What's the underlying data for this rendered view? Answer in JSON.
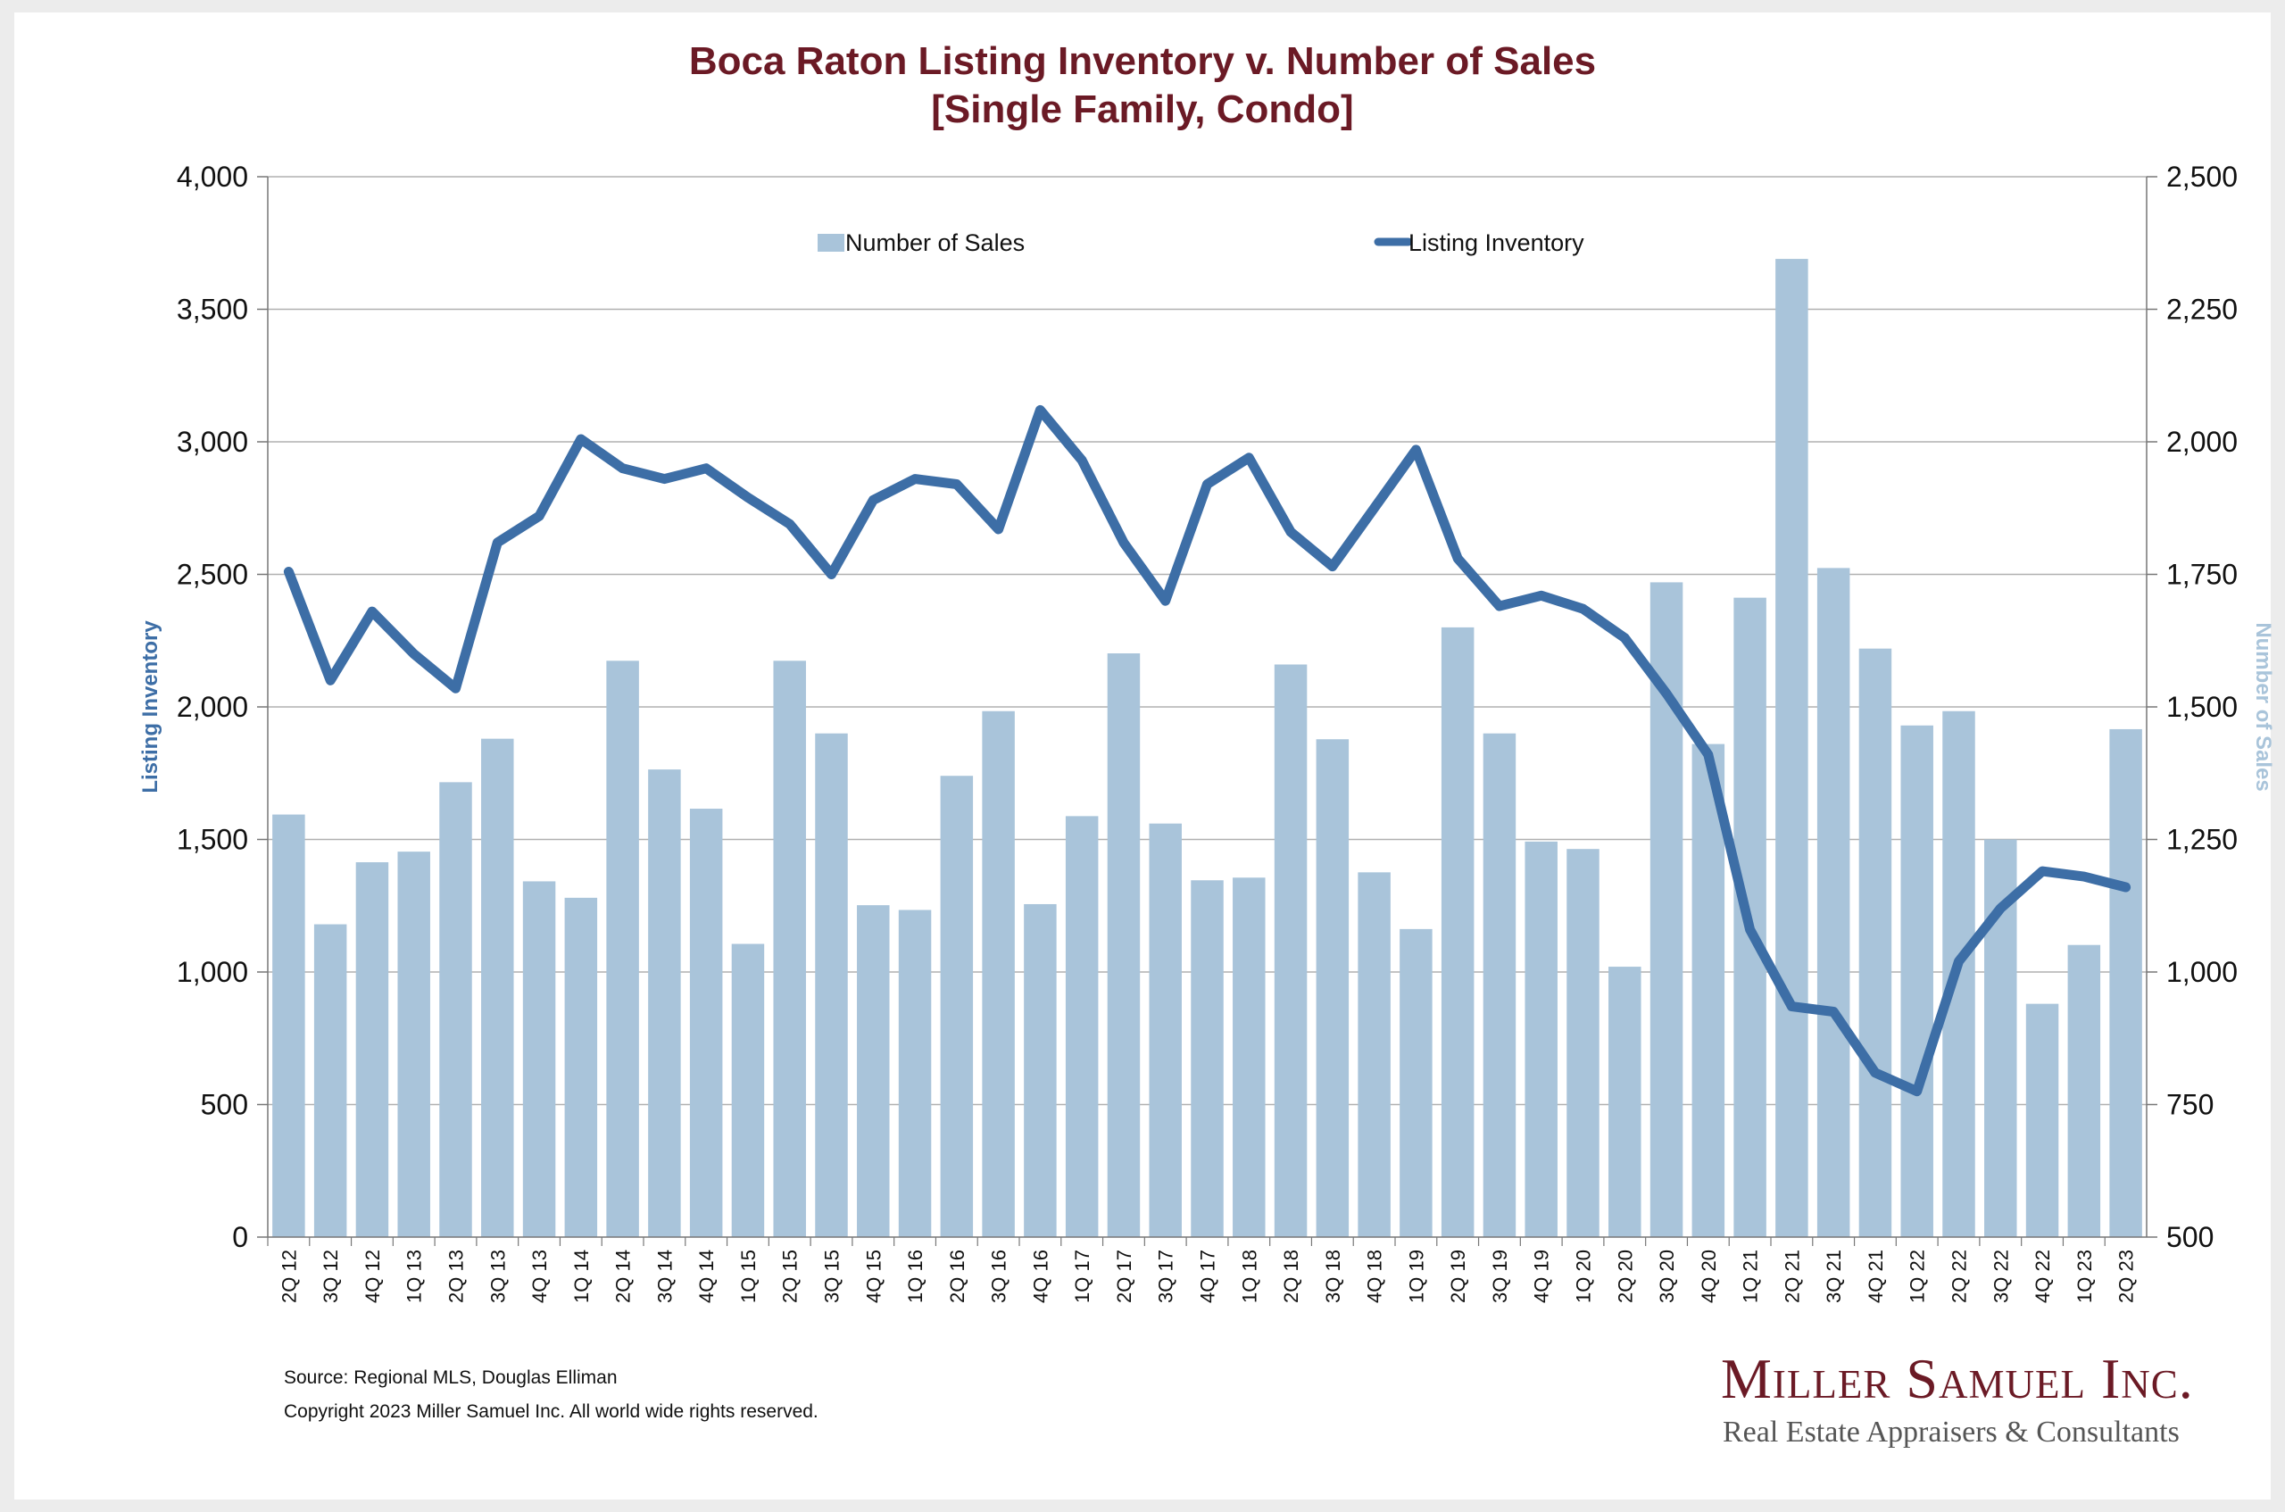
{
  "title": {
    "line1": "Boca Raton Listing Inventory v. Number of Sales",
    "line2": "[Single Family, Condo]"
  },
  "footer": {
    "source": "Source: Regional MLS, Douglas Elliman",
    "copyright": "Copyright 2023 Miller Samuel Inc.  All world wide rights reserved."
  },
  "logo": {
    "name": "Miller Samuel Inc.",
    "tagline": "Real Estate Appraisers & Consultants"
  },
  "colors": {
    "bars": "#a9c4da",
    "line": "#3d6ea6",
    "title": "#6b1a25",
    "grid": "#b0b0b0"
  },
  "chart_data": {
    "type": "bar",
    "categories": [
      "2Q 12",
      "3Q 12",
      "4Q 12",
      "1Q 13",
      "2Q 13",
      "3Q 13",
      "4Q 13",
      "1Q 14",
      "2Q 14",
      "3Q 14",
      "4Q 14",
      "1Q 15",
      "2Q 15",
      "3Q 15",
      "4Q 15",
      "1Q 16",
      "2Q 16",
      "3Q 16",
      "4Q 16",
      "1Q 17",
      "2Q 17",
      "3Q 17",
      "4Q 17",
      "1Q 18",
      "2Q 18",
      "3Q 18",
      "4Q 18",
      "1Q 19",
      "2Q 19",
      "3Q 19",
      "4Q 19",
      "1Q 20",
      "2Q 20",
      "3Q 20",
      "4Q 20",
      "1Q 21",
      "2Q 21",
      "3Q 21",
      "4Q 21",
      "1Q 22",
      "2Q 22",
      "3Q 22",
      "4Q 22",
      "1Q 23",
      "2Q 23"
    ],
    "series": [
      {
        "name": "Number of Sales",
        "type": "bar",
        "axis": "right",
        "values": [
          1297,
          1090,
          1207,
          1227,
          1358,
          1440,
          1171,
          1140,
          1587,
          1382,
          1308,
          1053,
          1587,
          1450,
          1126,
          1117,
          1370,
          1492,
          1128,
          1294,
          1601,
          1280,
          1173,
          1178,
          1580,
          1439,
          1188,
          1081,
          1650,
          1450,
          1246,
          1232,
          1010,
          1735,
          1430,
          1706,
          2345,
          1762,
          1610,
          1465,
          1492,
          1250,
          940,
          1051,
          1458
        ]
      },
      {
        "name": "Listing Inventory",
        "type": "line",
        "axis": "left",
        "values": [
          2510,
          2100,
          2360,
          2200,
          2070,
          2620,
          2720,
          3010,
          2900,
          2860,
          2900,
          2790,
          2690,
          2500,
          2780,
          2860,
          2840,
          2670,
          3120,
          2930,
          2620,
          2400,
          2840,
          2940,
          2660,
          2530,
          2750,
          2970,
          2560,
          2380,
          2420,
          2370,
          2260,
          2050,
          1820,
          1160,
          870,
          850,
          620,
          550,
          1040,
          1240,
          1380,
          1360,
          1320
        ]
      }
    ],
    "y_left": {
      "label": "Listing Inventory",
      "min": 0,
      "max": 4000,
      "ticks": [
        "0",
        "500",
        "1,000",
        "1,500",
        "2,000",
        "2,500",
        "3,000",
        "3,500",
        "4,000"
      ]
    },
    "y_right": {
      "label": "Number of Sales",
      "min": 500,
      "max": 2500,
      "ticks": [
        "500",
        "750",
        "1,000",
        "1,250",
        "1,500",
        "1,750",
        "2,000",
        "2,250",
        "2,500"
      ]
    },
    "grid": true,
    "legend_position": "top-center"
  }
}
